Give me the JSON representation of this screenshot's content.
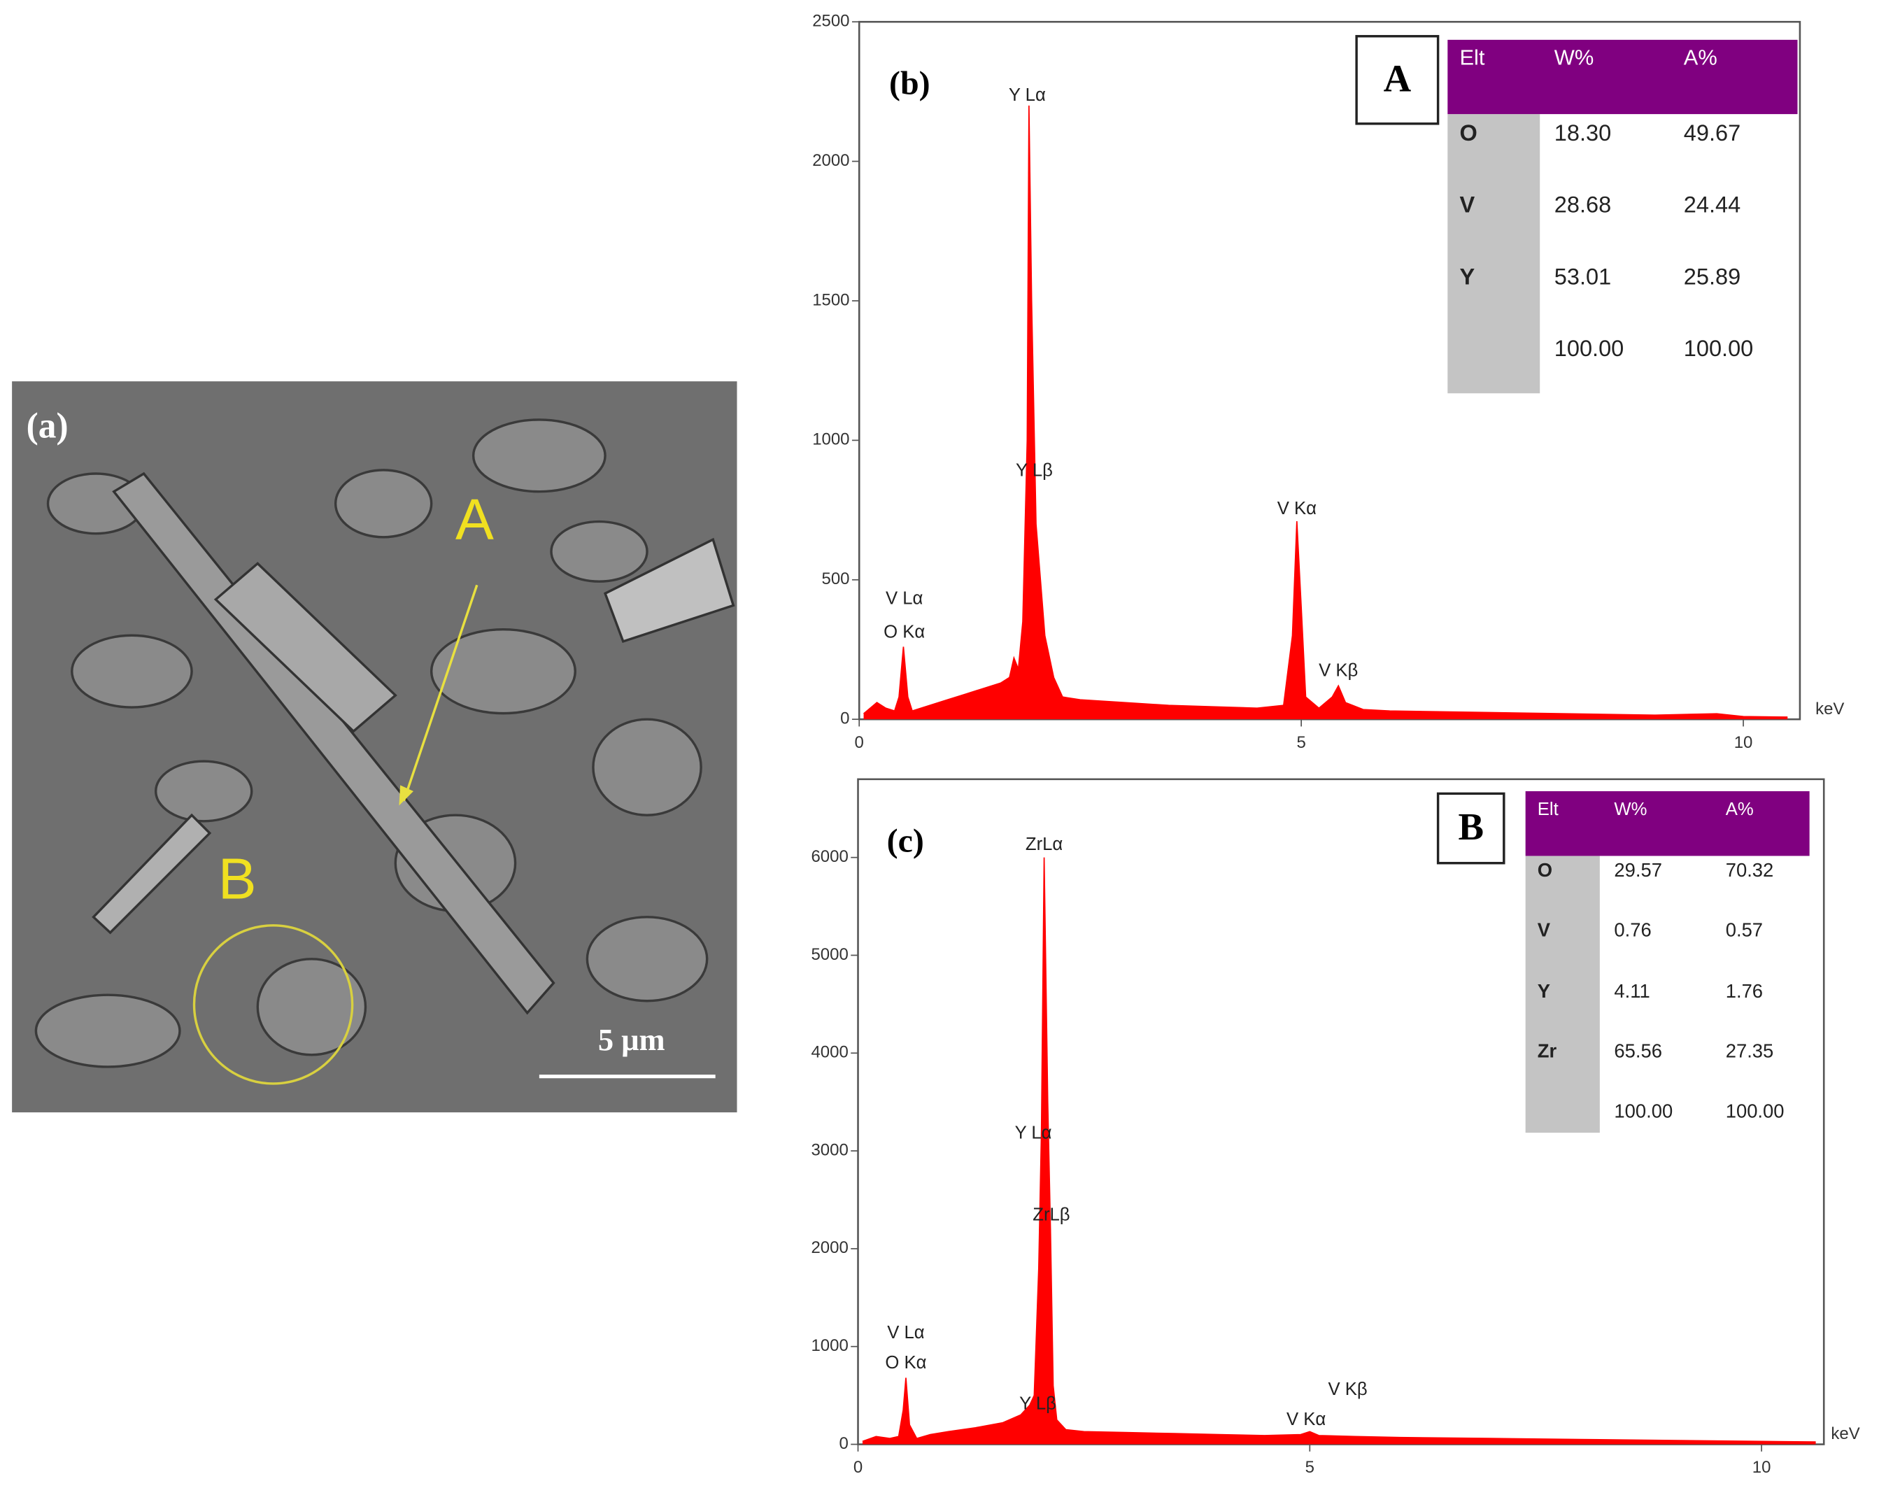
{
  "micrograph": {
    "label": "(a)",
    "markers": [
      "A",
      "B"
    ],
    "scale_bar": "5 μm"
  },
  "chart_data": [
    {
      "type": "area",
      "label": "(b)",
      "xlabel": "keV",
      "color": "#ff0000",
      "xlim": [
        0,
        10.64
      ],
      "xticks": [
        0,
        5,
        10
      ],
      "ylim": [
        0,
        2500
      ],
      "yticks": [
        0,
        500,
        1000,
        1500,
        2000,
        2500
      ],
      "x": [
        0.05,
        0.2,
        0.3,
        0.4,
        0.45,
        0.5,
        0.55,
        0.6,
        0.8,
        1.0,
        1.2,
        1.4,
        1.6,
        1.7,
        1.75,
        1.8,
        1.85,
        1.9,
        1.92,
        1.95,
        2.0,
        2.05,
        2.1,
        2.2,
        2.3,
        2.5,
        3,
        3.5,
        4,
        4.5,
        4.8,
        4.9,
        4.95,
        5.0,
        5.05,
        5.2,
        5.35,
        5.42,
        5.5,
        5.7,
        6,
        7,
        8,
        9,
        9.7,
        10,
        10.5
      ],
      "values": [
        20,
        60,
        40,
        30,
        80,
        260,
        80,
        30,
        50,
        70,
        90,
        110,
        130,
        150,
        220,
        180,
        350,
        1000,
        2200,
        1500,
        700,
        500,
        300,
        150,
        80,
        70,
        60,
        50,
        45,
        40,
        50,
        300,
        710,
        400,
        80,
        40,
        80,
        120,
        60,
        35,
        30,
        25,
        20,
        15,
        20,
        10,
        8
      ],
      "annotations": [
        {
          "text": "Y Lα",
          "x": 1.9,
          "y": 2234
        },
        {
          "text": "Y Lβ",
          "x": 1.98,
          "y": 889
        },
        {
          "text": "V Kα",
          "x": 4.95,
          "y": 752
        },
        {
          "text": "V Lα",
          "x": 0.51,
          "y": 430
        },
        {
          "text": "O Kα",
          "x": 0.51,
          "y": 309
        },
        {
          "text": "V Kβ",
          "x": 5.42,
          "y": 172
        }
      ],
      "table": {
        "label": "A",
        "header": [
          "Elt",
          "W%",
          "A%"
        ],
        "rows": [
          [
            "O",
            "18.30",
            "49.67"
          ],
          [
            "V",
            "28.68",
            "24.44"
          ],
          [
            "Y",
            "53.01",
            "25.89"
          ],
          [
            null,
            "100.00",
            "100.00"
          ]
        ]
      }
    },
    {
      "type": "area",
      "label": "(c)",
      "xlabel": "keV",
      "color": "#ff0000",
      "xlim": [
        0,
        10.69
      ],
      "xticks": [
        0,
        5,
        10
      ],
      "ylim": [
        0,
        6800
      ],
      "yticks": [
        0,
        1000,
        2000,
        3000,
        4000,
        5000,
        6000
      ],
      "x": [
        0.05,
        0.2,
        0.35,
        0.45,
        0.5,
        0.53,
        0.57,
        0.65,
        0.8,
        1,
        1.3,
        1.6,
        1.8,
        1.9,
        1.95,
        2.0,
        2.03,
        2.06,
        2.1,
        2.13,
        2.16,
        2.2,
        2.3,
        2.5,
        3,
        3.5,
        4,
        4.5,
        4.9,
        5.0,
        5.1,
        5.5,
        6,
        7,
        8,
        9,
        10,
        10.6
      ],
      "values": [
        30,
        80,
        60,
        80,
        350,
        680,
        200,
        60,
        100,
        130,
        170,
        220,
        300,
        400,
        500,
        1800,
        3200,
        6000,
        3500,
        2200,
        600,
        250,
        150,
        130,
        120,
        110,
        100,
        90,
        100,
        130,
        90,
        80,
        70,
        60,
        50,
        40,
        30,
        25
      ],
      "annotations": [
        {
          "text": "ZrLα",
          "x": 2.06,
          "y": 6125
        },
        {
          "text": "Y Lα",
          "x": 1.94,
          "y": 3173
        },
        {
          "text": "ZrLβ",
          "x": 2.14,
          "y": 2337
        },
        {
          "text": "V Lα",
          "x": 0.53,
          "y": 1132
        },
        {
          "text": "O Kα",
          "x": 0.53,
          "y": 824
        },
        {
          "text": "V Kβ",
          "x": 5.42,
          "y": 553
        },
        {
          "text": "V Kα",
          "x": 4.96,
          "y": 246
        },
        {
          "text": "Y Lβ",
          "x": 1.99,
          "y": 406
        }
      ],
      "table": {
        "label": "B",
        "header": [
          "Elt",
          "W%",
          "A%"
        ],
        "rows": [
          [
            "O",
            "29.57",
            "70.32"
          ],
          [
            "V",
            "0.76",
            "0.57"
          ],
          [
            "Y",
            "4.11",
            "1.76"
          ],
          [
            "Zr",
            "65.56",
            "27.35"
          ],
          [
            null,
            "100.00",
            "100.00"
          ]
        ]
      }
    }
  ]
}
